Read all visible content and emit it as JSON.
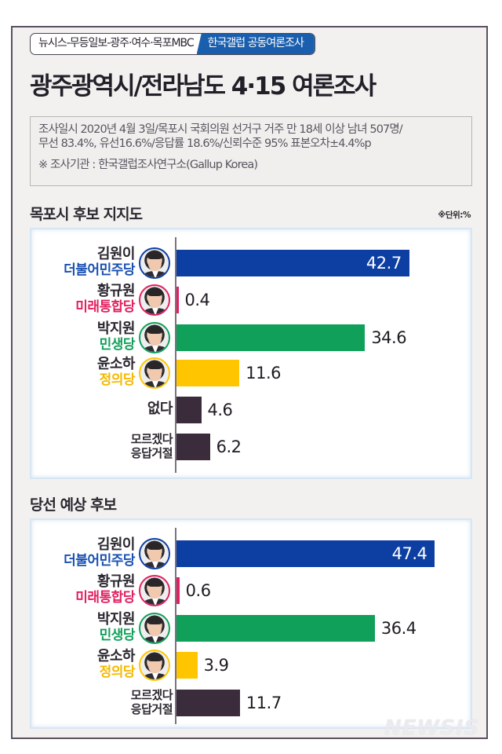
{
  "header": {
    "badge_left": "뉴시스-무등일보-광주·여수·목포MBC",
    "badge_right": "한국갤럽 공동여론조사",
    "title": "광주광역시/전라남도 4·15 여론조사"
  },
  "info": {
    "line1": "조사일시 2020년 4월 3일/목포시 국회의원 선거구 거주 만 18세 이상 남녀 507명/",
    "line2": "무선 83.4%, 유선16.6%/응답률 18.6%/신뢰수준 95% 표본오차±4.4%p",
    "agency": "※ 조사기관 : 한국갤럽조사연구소(Gallup Korea)"
  },
  "unit_note": "※단위:%",
  "watermark": "NEWSIS",
  "colors": {
    "democratic": "#0d3fa3",
    "future_united": "#e3205f",
    "minsaeng": "#10a05a",
    "justice": "#ffc600",
    "other": "#3b2c3b",
    "badge_blue": "#1a5fae",
    "frame": "#5b5060"
  },
  "chart_data": [
    {
      "type": "bar",
      "orientation": "horizontal",
      "title": "목포시 후보 지지도",
      "unit": "%",
      "categories": [
        "김원이 (더불어민주당)",
        "황규원 (미래통합당)",
        "박지원 (민생당)",
        "윤소하 (정의당)",
        "없다",
        "모르겠다/응답거절"
      ],
      "values": [
        42.7,
        0.4,
        34.6,
        11.6,
        4.6,
        6.2
      ],
      "rows": [
        {
          "name": "김원이",
          "party": "더불어민주당",
          "value": 42.7,
          "display": "42.7",
          "color": "#0d3fa3",
          "party_color": "#1850b0",
          "avatar": true
        },
        {
          "name": "황규원",
          "party": "미래통합당",
          "value": 0.4,
          "display": "0.4",
          "color": "#e3205f",
          "party_color": "#e3205f",
          "avatar": true
        },
        {
          "name": "박지원",
          "party": "민생당",
          "value": 34.6,
          "display": "34.6",
          "color": "#10a05a",
          "party_color": "#10a05a",
          "avatar": true
        },
        {
          "name": "윤소하",
          "party": "정의당",
          "value": 11.6,
          "display": "11.6",
          "color": "#ffc600",
          "party_color": "#f5b800",
          "avatar": true
        },
        {
          "name": "없다",
          "party": "",
          "value": 4.6,
          "display": "4.6",
          "color": "#3b2c3b",
          "avatar": false
        },
        {
          "name": "모르겠다",
          "party": "응답거절",
          "value": 6.2,
          "display": "6.2",
          "color": "#3b2c3b",
          "avatar": false
        }
      ],
      "xlabel": "",
      "ylabel": "",
      "grid": false,
      "legend": "none"
    },
    {
      "type": "bar",
      "orientation": "horizontal",
      "title": "당선 예상 후보",
      "unit": "%",
      "categories": [
        "김원이 (더불어민주당)",
        "황규원 (미래통합당)",
        "박지원 (민생당)",
        "윤소하 (정의당)",
        "모르겠다/응답거절"
      ],
      "values": [
        47.4,
        0.6,
        36.4,
        3.9,
        11.7
      ],
      "rows": [
        {
          "name": "김원이",
          "party": "더불어민주당",
          "value": 47.4,
          "display": "47.4",
          "color": "#0d3fa3",
          "party_color": "#1850b0",
          "avatar": true
        },
        {
          "name": "황규원",
          "party": "미래통합당",
          "value": 0.6,
          "display": "0.6",
          "color": "#e3205f",
          "party_color": "#e3205f",
          "avatar": true
        },
        {
          "name": "박지원",
          "party": "민생당",
          "value": 36.4,
          "display": "36.4",
          "color": "#10a05a",
          "party_color": "#10a05a",
          "avatar": true
        },
        {
          "name": "윤소하",
          "party": "정의당",
          "value": 3.9,
          "display": "3.9",
          "color": "#ffc600",
          "party_color": "#f5b800",
          "avatar": true
        },
        {
          "name": "모르겠다",
          "party": "응답거절",
          "value": 11.7,
          "display": "11.7",
          "color": "#3b2c3b",
          "avatar": false
        }
      ],
      "xlabel": "",
      "ylabel": "",
      "grid": false,
      "legend": "none"
    }
  ]
}
